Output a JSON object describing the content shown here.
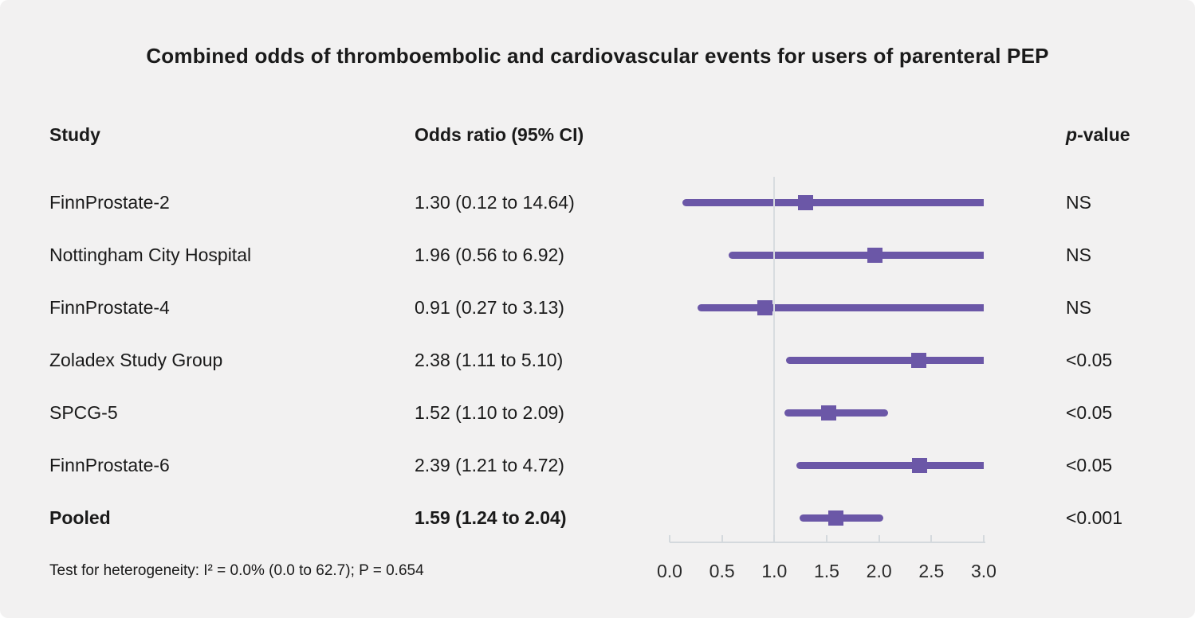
{
  "title": "Combined odds of thromboembolic and cardiovascular events for users of parenteral PEP",
  "columns": {
    "study": "Study",
    "odds_ratio": "Odds ratio (95% CI)",
    "p_italic": "p",
    "p_rest": "-value"
  },
  "footer": "Test for heterogeneity: I² = 0.0% (0.0 to 62.7); P = 0.654",
  "chart_data": {
    "type": "forest-plot",
    "title": "Combined odds of thromboembolic and cardiovascular events for users of parenteral PEP",
    "xlabel": "",
    "ylabel": "",
    "axis": {
      "min": 0.0,
      "max": 3.0,
      "tick_values": [
        0.0,
        0.5,
        1.0,
        1.5,
        2.0,
        2.5,
        3.0
      ],
      "tick_labels": [
        "0.0",
        "0.5",
        "1.0",
        "1.5",
        "2.0",
        "2.5",
        "3.0"
      ],
      "reference_line": 1.0
    },
    "rows": [
      {
        "study": "FinnProstate-2",
        "or": 1.3,
        "ci_low": 0.12,
        "ci_high": 14.64,
        "or_text": "1.30 (0.12 to 14.64)",
        "p": "NS",
        "bold": false
      },
      {
        "study": "Nottingham City Hospital",
        "or": 1.96,
        "ci_low": 0.56,
        "ci_high": 6.92,
        "or_text": "1.96 (0.56 to 6.92)",
        "p": "NS",
        "bold": false
      },
      {
        "study": "FinnProstate-4",
        "or": 0.91,
        "ci_low": 0.27,
        "ci_high": 3.13,
        "or_text": "0.91 (0.27 to 3.13)",
        "p": "NS",
        "bold": false
      },
      {
        "study": "Zoladex Study Group",
        "or": 2.38,
        "ci_low": 1.11,
        "ci_high": 5.1,
        "or_text": "2.38 (1.11 to 5.10)",
        "p": "<0.05",
        "bold": false
      },
      {
        "study": "SPCG-5",
        "or": 1.52,
        "ci_low": 1.1,
        "ci_high": 2.09,
        "or_text": "1.52 (1.10 to 2.09)",
        "p": "<0.05",
        "bold": false
      },
      {
        "study": "FinnProstate-6",
        "or": 2.39,
        "ci_low": 1.21,
        "ci_high": 4.72,
        "or_text": "2.39 (1.21 to 4.72)",
        "p": "<0.05",
        "bold": false
      },
      {
        "study": "Pooled",
        "or": 1.59,
        "ci_low": 1.24,
        "ci_high": 2.04,
        "or_text": "1.59 (1.24 to 2.04)",
        "p": "<0.001",
        "bold": true
      }
    ],
    "colors": {
      "marker": "#6B57A7",
      "ci_line": "#6B57A7",
      "grid": "#D4D9DD",
      "background": "#F2F1F1",
      "text": "#1A1A1A"
    }
  }
}
